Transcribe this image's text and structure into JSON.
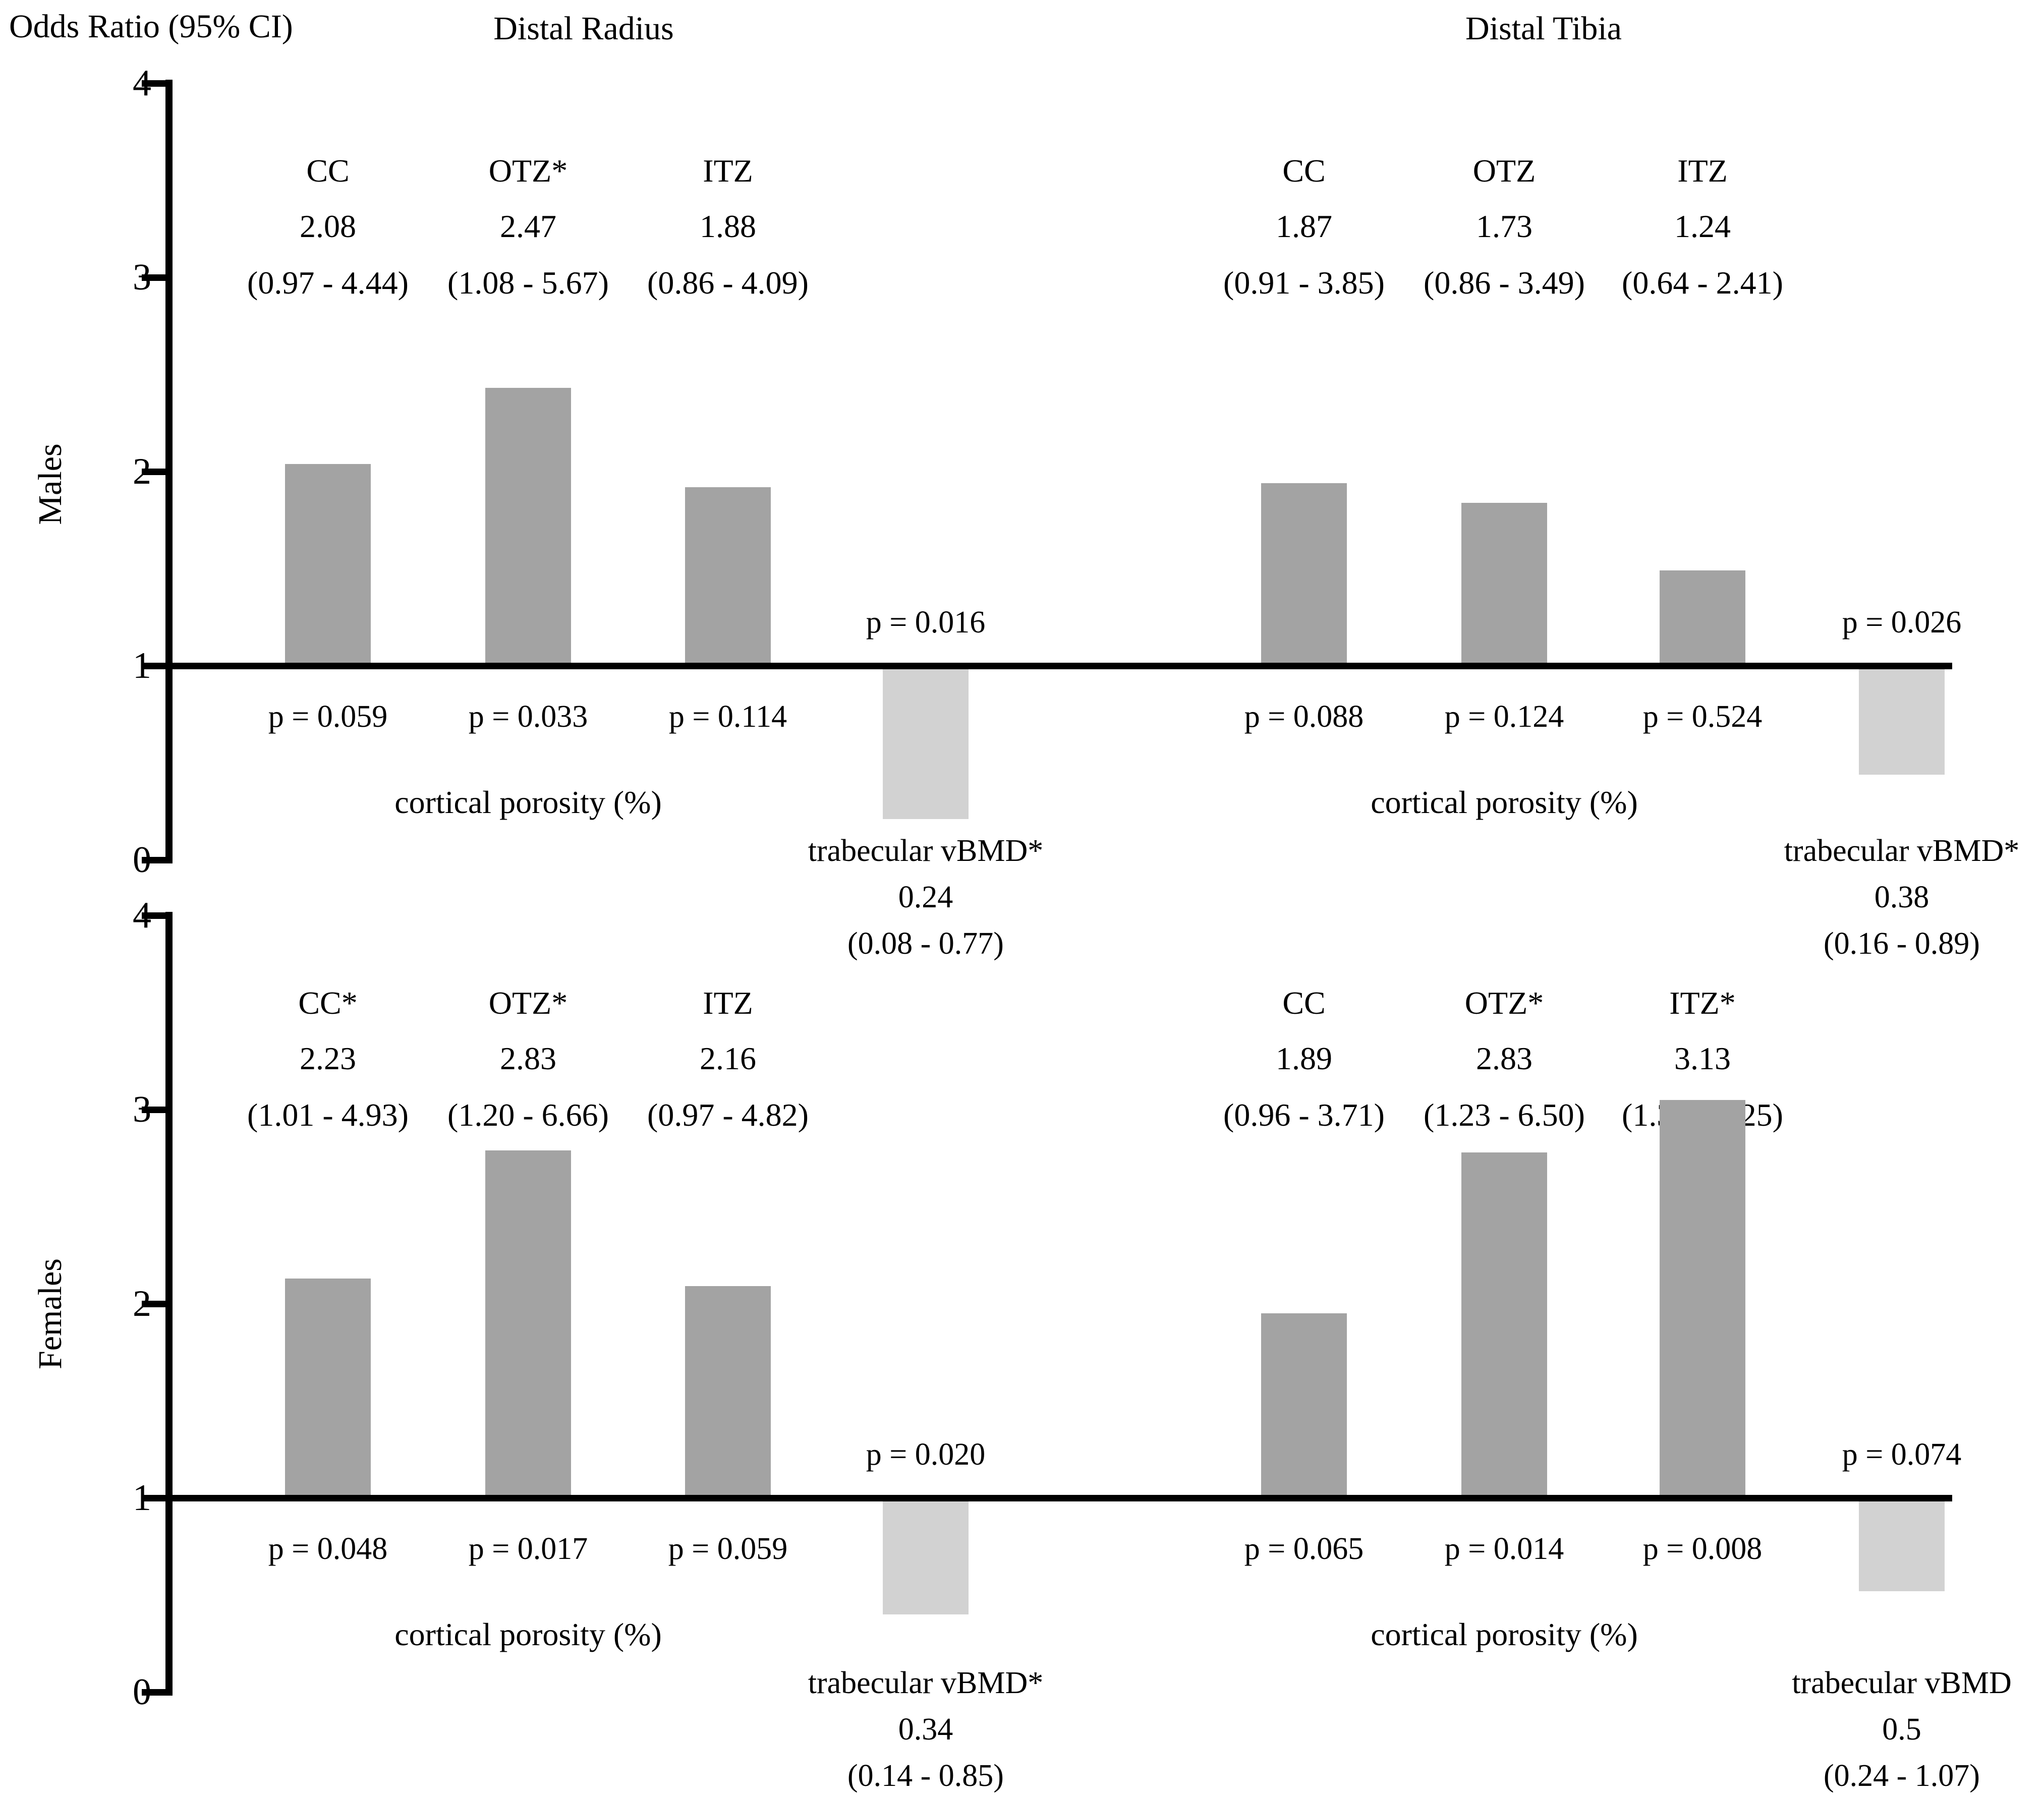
{
  "chart_data": {
    "type": "bar",
    "header": "Odds Ratio (95% CI)",
    "ylabel": "Odds Ratio (95% CI)",
    "ylim": [
      0,
      4
    ],
    "yticks": [
      4,
      3,
      2,
      1,
      0
    ],
    "baseline": 1,
    "grid": false,
    "colors": {
      "cortical_bar": "#a3a3a3",
      "trabecular_bar": "#d2d2d2",
      "axis": "#000000"
    },
    "panels": [
      {
        "sex": "Males",
        "sites": [
          {
            "site": "Distal Radius",
            "xlabel": "cortical porosity (%)",
            "bars": [
              {
                "label": "CC",
                "or": 2.08,
                "ci": [
                  0.97,
                  4.44
                ],
                "ci_text": "(0.97 - 4.44)",
                "p": 0.059,
                "p_text": "p = 0.059",
                "bar_top": 2.04
              },
              {
                "label": "OTZ*",
                "or": 2.47,
                "ci": [
                  1.08,
                  5.67
                ],
                "ci_text": "(1.08 - 5.67)",
                "p": 0.033,
                "p_text": "p = 0.033",
                "bar_top": 2.43
              },
              {
                "label": "ITZ",
                "or": 1.88,
                "ci": [
                  0.86,
                  4.09
                ],
                "ci_text": "(0.86 - 4.09)",
                "p": 0.114,
                "p_text": "p = 0.114",
                "bar_top": 1.92
              }
            ],
            "trabecular": {
              "label": "trabecular vBMD*",
              "or": 0.24,
              "ci": [
                0.08,
                0.77
              ],
              "ci_text": "(0.08 - 0.77)",
              "p": 0.016,
              "p_text": "p = 0.016",
              "bar_bottom": 0.21
            }
          },
          {
            "site": "Distal Tibia",
            "xlabel": "cortical porosity (%)",
            "bars": [
              {
                "label": "CC",
                "or": 1.87,
                "ci": [
                  0.91,
                  3.85
                ],
                "ci_text": "(0.91 - 3.85)",
                "p": 0.088,
                "p_text": "p = 0.088",
                "bar_top": 1.94
              },
              {
                "label": "OTZ",
                "or": 1.73,
                "ci": [
                  0.86,
                  3.49
                ],
                "ci_text": "(0.86 - 3.49)",
                "p": 0.124,
                "p_text": "p = 0.124",
                "bar_top": 1.84
              },
              {
                "label": "ITZ",
                "or": 1.24,
                "ci": [
                  0.64,
                  2.41
                ],
                "ci_text": "(0.64 - 2.41)",
                "p": 0.524,
                "p_text": "p = 0.524",
                "bar_top": 1.49
              }
            ],
            "trabecular": {
              "label": "trabecular vBMD*",
              "or": 0.38,
              "ci": [
                0.16,
                0.89
              ],
              "ci_text": "(0.16 - 0.89)",
              "p": 0.026,
              "p_text": "p = 0.026",
              "bar_bottom": 0.44
            }
          }
        ]
      },
      {
        "sex": "Females",
        "sites": [
          {
            "site": "Distal Radius",
            "xlabel": "cortical porosity (%)",
            "bars": [
              {
                "label": "CC*",
                "or": 2.23,
                "ci": [
                  1.01,
                  4.93
                ],
                "ci_text": "(1.01 - 4.93)",
                "p": 0.048,
                "p_text": "p = 0.048",
                "bar_top": 2.13
              },
              {
                "label": "OTZ*",
                "or": 2.83,
                "ci": [
                  1.2,
                  6.66
                ],
                "ci_text": "(1.20 - 6.66)",
                "p": 0.017,
                "p_text": "p = 0.017",
                "bar_top": 2.79
              },
              {
                "label": "ITZ",
                "or": 2.16,
                "ci": [
                  0.97,
                  4.82
                ],
                "ci_text": "(0.97 - 4.82)",
                "p": 0.059,
                "p_text": "p = 0.059",
                "bar_top": 2.09
              }
            ],
            "trabecular": {
              "label": "trabecular vBMD*",
              "or": 0.34,
              "ci": [
                0.14,
                0.85
              ],
              "ci_text": "(0.14 - 0.85)",
              "p": 0.02,
              "p_text": "p = 0.020",
              "bar_bottom": 0.4
            }
          },
          {
            "site": "Distal Tibia",
            "xlabel": "cortical porosity (%)",
            "bars": [
              {
                "label": "CC",
                "or": 1.89,
                "ci": [
                  0.96,
                  3.71
                ],
                "ci_text": "(0.96 - 3.71)",
                "p": 0.065,
                "p_text": "p = 0.065",
                "bar_top": 1.95
              },
              {
                "label": "OTZ*",
                "or": 2.83,
                "ci": [
                  1.23,
                  6.5
                ],
                "ci_text": "(1.23 - 6.50)",
                "p": 0.014,
                "p_text": "p = 0.014",
                "bar_top": 2.78
              },
              {
                "label": "ITZ*",
                "or": 3.13,
                "ci": [
                  1.35,
                  7.25
                ],
                "ci_text": "(1.35 - 7.25)",
                "p": 0.008,
                "p_text": "p = 0.008",
                "bar_top": 3.05
              }
            ],
            "trabecular": {
              "label": "trabecular vBMD",
              "or": 0.5,
              "ci": [
                0.24,
                1.07
              ],
              "ci_text": "(0.24 - 1.07)",
              "p": 0.074,
              "p_text": "p = 0.074",
              "bar_bottom": 0.52
            }
          }
        ]
      }
    ]
  }
}
